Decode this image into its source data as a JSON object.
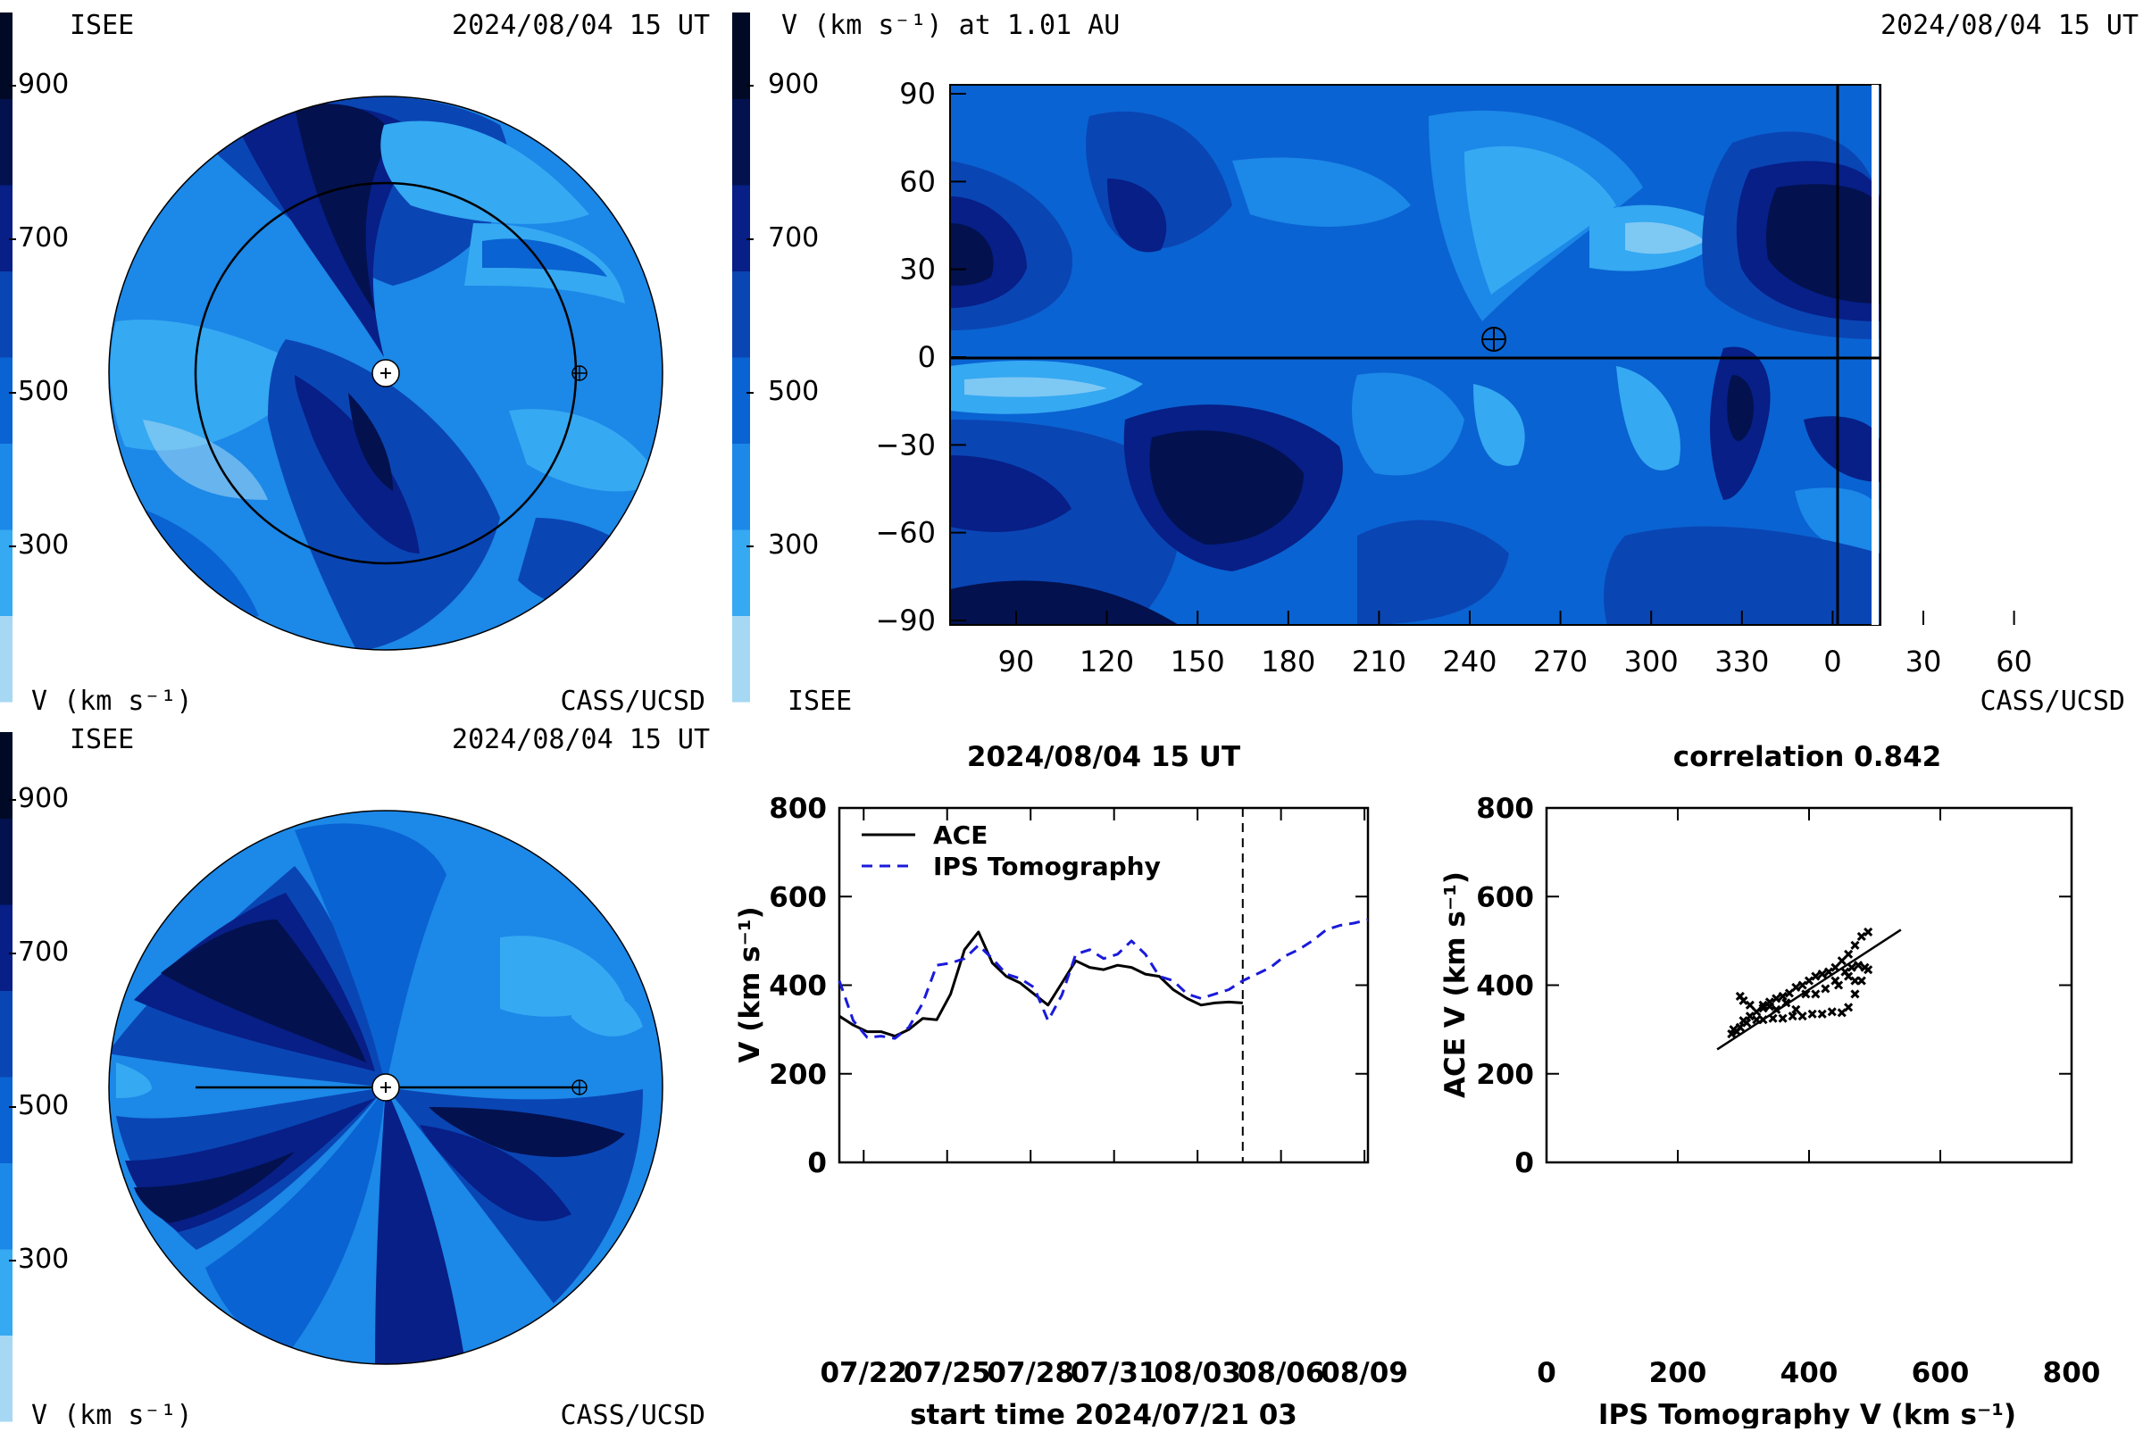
{
  "colorbar": {
    "colors": [
      "#a6d8f4",
      "#35a9f2",
      "#1c88e8",
      "#0a63d2",
      "#0a45b4",
      "#071f86",
      "#03114e",
      "#000a26"
    ],
    "ticks": [
      "900",
      "700",
      "500",
      "300"
    ]
  },
  "panel_top_left": {
    "label_isee": "ISEE",
    "timestamp": "2024/08/04 15 UT",
    "unit": "V (km s⁻¹)",
    "credit": "CASS/UCSD"
  },
  "panel_top_right": {
    "title": "V (km s⁻¹) at 1.01 AU",
    "timestamp": "2024/08/04 15 UT",
    "label_isee": "ISEE",
    "credit": "CASS/UCSD",
    "x_ticks": [
      "90",
      "120",
      "150",
      "180",
      "210",
      "240",
      "270",
      "300",
      "330",
      "0",
      "30",
      "60"
    ],
    "y_ticks": [
      "90",
      "60",
      "30",
      "0",
      "−30",
      "−60",
      "−90"
    ]
  },
  "panel_bottom_left": {
    "label_isee": "ISEE",
    "timestamp": "2024/08/04 15 UT",
    "unit": "V (km s⁻¹)",
    "credit": "CASS/UCSD"
  },
  "chart_data": [
    {
      "type": "line",
      "title": "2024/08/04 15 UT",
      "xlabel": "start time 2024/07/21 03",
      "ylabel": "V (km s⁻¹)",
      "x_ticks": [
        "07/22",
        "07/25",
        "07/28",
        "07/31",
        "08/03",
        "08/06",
        "08/09"
      ],
      "x_tick_days": [
        0.875,
        3.875,
        6.875,
        9.875,
        12.875,
        15.875,
        18.875
      ],
      "y_ticks": [
        "0",
        "200",
        "400",
        "600",
        "800"
      ],
      "ylim": [
        0,
        800
      ],
      "xlim": [
        0,
        19
      ],
      "now_marker_day": 14.5,
      "series": [
        {
          "name": "ACE",
          "color": "#000000",
          "dash": "solid",
          "x": [
            0,
            0.5,
            1,
            1.5,
            2,
            2.5,
            3,
            3.5,
            4,
            4.5,
            5,
            5.5,
            6,
            6.5,
            7,
            7.5,
            8,
            8.5,
            9,
            9.5,
            10,
            10.5,
            11,
            11.5,
            12,
            12.5,
            13,
            13.5,
            14,
            14.5
          ],
          "y": [
            330,
            310,
            295,
            295,
            285,
            300,
            325,
            322,
            380,
            480,
            520,
            450,
            420,
            405,
            380,
            355,
            405,
            455,
            440,
            435,
            445,
            440,
            425,
            420,
            390,
            370,
            355,
            360,
            362,
            360
          ]
        },
        {
          "name": "IPS Tomography",
          "color": "#1a1adc",
          "dash": "dashed",
          "x": [
            0,
            0.5,
            1,
            1.5,
            2,
            2.5,
            3,
            3.5,
            4,
            4.5,
            5,
            5.5,
            6,
            6.5,
            7,
            7.5,
            8,
            8.5,
            9,
            9.5,
            10,
            10.5,
            11,
            11.5,
            12,
            12.5,
            13,
            13.5,
            14,
            14.5,
            15,
            15.5,
            16,
            16.5,
            17,
            17.5,
            18,
            18.5,
            19
          ],
          "y": [
            410,
            320,
            282,
            285,
            280,
            305,
            360,
            445,
            450,
            460,
            490,
            460,
            425,
            415,
            395,
            320,
            378,
            470,
            480,
            460,
            470,
            500,
            470,
            420,
            410,
            380,
            370,
            380,
            390,
            410,
            425,
            440,
            465,
            480,
            500,
            525,
            535,
            540,
            548
          ]
        }
      ]
    },
    {
      "type": "scatter",
      "title": "correlation 0.842",
      "xlabel": "IPS Tomography V (km s⁻¹)",
      "ylabel": "ACE V (km s⁻¹)",
      "x_ticks": [
        "0",
        "200",
        "400",
        "600",
        "800"
      ],
      "y_ticks": [
        "0",
        "200",
        "400",
        "600",
        "800"
      ],
      "xlim": [
        0,
        800
      ],
      "ylim": [
        0,
        800
      ],
      "fit_line": {
        "x": [
          260,
          540
        ],
        "y": [
          255,
          525
        ]
      },
      "points": {
        "x": [
          282,
          285,
          290,
          295,
          300,
          305,
          310,
          320,
          330,
          340,
          350,
          360,
          370,
          380,
          390,
          400,
          410,
          420,
          430,
          440,
          450,
          460,
          470,
          480,
          490,
          320,
          330,
          345,
          360,
          375,
          390,
          405,
          420,
          435,
          450,
          460,
          470,
          480,
          490,
          310,
          300,
          295,
          350,
          380,
          410,
          440,
          455,
          465,
          475,
          485,
          460,
          470,
          445,
          425,
          395,
          365,
          340,
          330
        ],
        "y": [
          290,
          300,
          295,
          305,
          320,
          315,
          330,
          340,
          355,
          362,
          370,
          375,
          382,
          395,
          400,
          410,
          420,
          425,
          430,
          440,
          455,
          470,
          490,
          510,
          520,
          322,
          322,
          325,
          325,
          330,
          330,
          335,
          335,
          340,
          338,
          350,
          380,
          410,
          435,
          355,
          365,
          375,
          345,
          345,
          380,
          410,
          430,
          440,
          445,
          440,
          420,
          410,
          400,
          392,
          380,
          360,
          352,
          348
        ]
      }
    }
  ]
}
